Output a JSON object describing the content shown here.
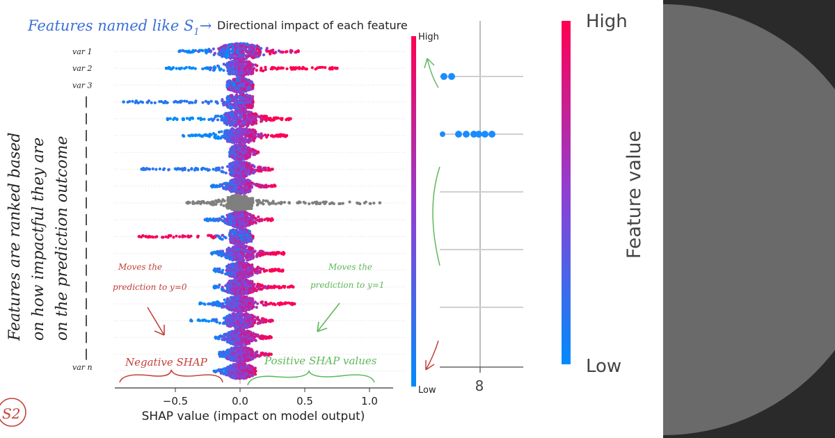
{
  "chart_data": {
    "type": "scatter",
    "variant": "shap-beeswarm",
    "title": "Directional impact of each feature",
    "xlabel": "SHAP value (impact on model output)",
    "ylabel": "",
    "xlim": [
      -0.98,
      1.18
    ],
    "xticks": [
      "−0.5",
      "0.0",
      "0.5",
      "1.0"
    ],
    "xtick_values": [
      -0.5,
      0.0,
      0.5,
      1.0
    ],
    "features": [
      "var 1",
      "var 2",
      "var 3",
      "",
      "",
      "",
      "",
      "",
      "",
      "",
      "",
      "",
      "",
      "",
      "",
      "",
      "",
      "",
      "",
      "var n"
    ],
    "rows": [
      {
        "min": -0.47,
        "max": 0.45,
        "core": 0.16,
        "color_rule": "mixed",
        "gray": false
      },
      {
        "min": -0.57,
        "max": 0.75,
        "core": 0.1,
        "color_rule": "high-pos",
        "gray": false
      },
      {
        "min": -0.1,
        "max": 0.1,
        "core": 0.1,
        "color_rule": "mixed",
        "gray": false
      },
      {
        "min": -0.9,
        "max": 0.1,
        "core": 0.1,
        "color_rule": "low-neg",
        "gray": false
      },
      {
        "min": -0.56,
        "max": 0.39,
        "core": 0.12,
        "color_rule": "high-pos",
        "gray": false
      },
      {
        "min": -0.44,
        "max": 0.36,
        "core": 0.12,
        "color_rule": "high-pos",
        "gray": false
      },
      {
        "min": -0.08,
        "max": 0.14,
        "core": 0.08,
        "color_rule": "high-pos",
        "gray": false
      },
      {
        "min": -0.76,
        "max": 0.25,
        "core": 0.08,
        "color_rule": "low-neg",
        "gray": false
      },
      {
        "min": -0.22,
        "max": 0.27,
        "core": 0.08,
        "color_rule": "high-pos",
        "gray": false
      },
      {
        "min": -0.41,
        "max": 1.08,
        "core": 0.1,
        "color_rule": "gray",
        "gray": true
      },
      {
        "min": -0.27,
        "max": 0.25,
        "core": 0.1,
        "color_rule": "high-pos",
        "gray": false
      },
      {
        "min": -0.78,
        "max": 0.1,
        "core": 0.08,
        "color_rule": "high-neg",
        "gray": false
      },
      {
        "min": -0.22,
        "max": 0.34,
        "core": 0.1,
        "color_rule": "high-pos",
        "gray": false
      },
      {
        "min": -0.2,
        "max": 0.33,
        "core": 0.1,
        "color_rule": "high-pos",
        "gray": false
      },
      {
        "min": -0.2,
        "max": 0.41,
        "core": 0.1,
        "color_rule": "high-pos",
        "gray": false
      },
      {
        "min": -0.31,
        "max": 0.42,
        "core": 0.1,
        "color_rule": "high-pos",
        "gray": false
      },
      {
        "min": -0.38,
        "max": 0.25,
        "core": 0.1,
        "color_rule": "high-pos",
        "gray": false
      },
      {
        "min": -0.19,
        "max": 0.24,
        "core": 0.1,
        "color_rule": "high-pos",
        "gray": false
      },
      {
        "min": -0.16,
        "max": 0.24,
        "core": 0.1,
        "color_rule": "high-pos",
        "gray": false
      },
      {
        "min": -0.2,
        "max": 0.12,
        "core": 0.1,
        "color_rule": "high-pos",
        "gray": false
      }
    ],
    "colorbar": {
      "high_label": "High",
      "low_label": "Low",
      "high_color": "#ff0051",
      "low_color": "#008bfb"
    },
    "grid": true
  },
  "zoom_panel": {
    "xtick": "8",
    "colorbar_high": "High",
    "colorbar_low": "Low",
    "colorbar_title": "Feature value"
  },
  "annotations": {
    "top_note": "Features named like S",
    "top_note_sub": "1",
    "top_arrow": "→",
    "vertical_note_1": "Features are ranked based",
    "vertical_note_2": "on how impactful they are",
    "vertical_note_3": "on the prediction outcome",
    "moves_neg_1": "Moves the",
    "moves_neg_2": "prediction to y=0",
    "moves_pos_1": "Moves the",
    "moves_pos_2": "prediction to y=1",
    "negative_shap": "Negative SHAP",
    "positive_shap": "Positive SHAP values",
    "circle_label": "S2"
  },
  "colors": {
    "high": "#ff0051",
    "low": "#008bfb",
    "neutral": "#7f7f7f",
    "ink_blue": "#3b6fd6",
    "ink_red": "#c3403a",
    "ink_green": "#5fb85a",
    "dark_bg": "#2a2a2a",
    "semicircle": "#6a6a6a"
  }
}
